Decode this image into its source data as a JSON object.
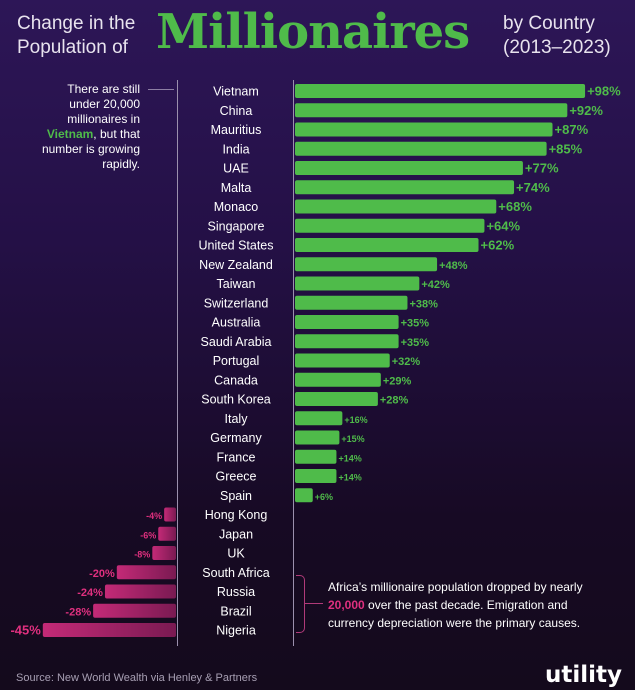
{
  "title": {
    "left_line1": "Change in the",
    "left_line2": "Population of",
    "main": "Millionaires",
    "right_line1": "by Country",
    "right_line2": "(2013–2023)"
  },
  "notes": {
    "vietnam": {
      "before": "There are still under 20,000 millionaires in ",
      "highlight": "Vietnam",
      "after": ", but that number is growing rapidly."
    },
    "africa": {
      "before": "Africa’s millionaire population dropped by nearly ",
      "highlight": "20,000",
      "after": " over the past decade. Emigration and currency depreciation were the primary causes."
    }
  },
  "source": "Source: New World Wealth via Henley & Partners",
  "logo": "utility",
  "colors": {
    "positive": "#4fbb4a",
    "negative": "#c42a77",
    "negative_label": "#e0307f"
  },
  "chart_data": {
    "type": "bar",
    "orientation": "horizontal",
    "categories": [
      "Vietnam",
      "China",
      "Mauritius",
      "India",
      "UAE",
      "Malta",
      "Monaco",
      "Singapore",
      "United States",
      "New Zealand",
      "Taiwan",
      "Switzerland",
      "Australia",
      "Saudi Arabia",
      "Portugal",
      "Canada",
      "South Korea",
      "Italy",
      "Germany",
      "France",
      "Greece",
      "Spain",
      "Hong Kong",
      "Japan",
      "UK",
      "South Africa",
      "Russia",
      "Brazil",
      "Nigeria"
    ],
    "values": [
      98,
      92,
      87,
      85,
      77,
      74,
      68,
      64,
      62,
      48,
      42,
      38,
      35,
      35,
      32,
      29,
      28,
      16,
      15,
      14,
      14,
      6,
      -4,
      -6,
      -8,
      -20,
      -24,
      -28,
      -45
    ],
    "labels": [
      "+98%",
      "+92%",
      "+87%",
      "+85%",
      "+77%",
      "+74%",
      "+68%",
      "+64%",
      "+62%",
      "+48%",
      "+42%",
      "+38%",
      "+35%",
      "+35%",
      "+32%",
      "+29%",
      "+28%",
      "+16%",
      "+15%",
      "+14%",
      "+14%",
      "+6%",
      "-4%",
      "-6%",
      "-8%",
      "-20%",
      "-24%",
      "-28%",
      "-45%"
    ],
    "unit": "%"
  }
}
